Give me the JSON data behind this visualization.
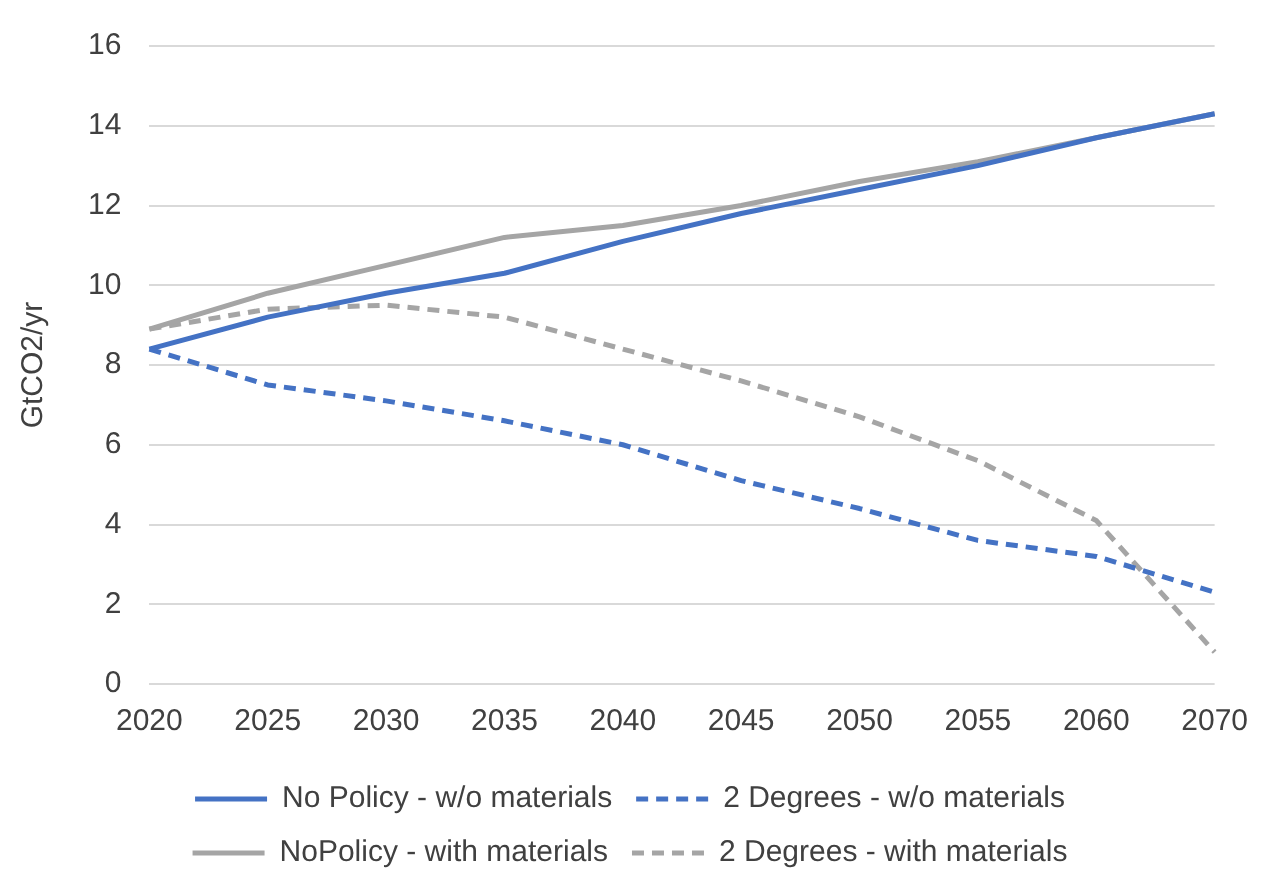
{
  "chart_data": {
    "type": "line",
    "ylabel": "GtCO2/yr",
    "categories": [
      "2020",
      "2025",
      "2030",
      "2035",
      "2040",
      "2045",
      "2050",
      "2055",
      "2060",
      "2070"
    ],
    "ylim": [
      0,
      16
    ],
    "yticks": [
      0,
      2,
      4,
      6,
      8,
      10,
      12,
      14,
      16
    ],
    "grid": "y",
    "legend": "bottom",
    "marker": "none",
    "series": [
      {
        "name": "No Policy - w/o materials",
        "color": "#4472c4",
        "line_style": "solid",
        "values": [
          8.4,
          9.2,
          9.8,
          10.3,
          11.1,
          11.8,
          12.4,
          13.0,
          13.7,
          14.3
        ]
      },
      {
        "name": "2 Degrees - w/o materials",
        "color": "#4472c4",
        "line_style": "dashed",
        "values": [
          8.4,
          7.5,
          7.1,
          6.6,
          6.0,
          5.1,
          4.4,
          3.6,
          3.2,
          2.3
        ]
      },
      {
        "name": "NoPolicy - with materials",
        "color": "#a5a5a5",
        "line_style": "solid",
        "values": [
          8.9,
          9.8,
          10.5,
          11.2,
          11.5,
          12.0,
          12.6,
          13.1,
          13.7,
          14.3
        ]
      },
      {
        "name": "2 Degrees - with materials",
        "color": "#a5a5a5",
        "line_style": "dashed",
        "values": [
          8.9,
          9.4,
          9.5,
          9.2,
          8.4,
          7.6,
          6.7,
          5.6,
          4.1,
          0.8
        ]
      }
    ]
  }
}
